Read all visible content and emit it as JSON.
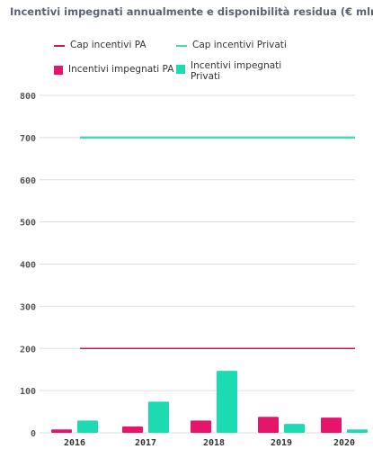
{
  "title": "Incentivi impegnati annualmente e disponibilità residua (€ mln)",
  "colors": {
    "pa": "#e6156b",
    "privati": "#1cdbb2",
    "cap_pa": "#c2185b",
    "cap_privati": "#45d8b6",
    "grid": "#dddddd"
  },
  "legend": {
    "cap_pa": "Cap incentivi PA",
    "cap_privati": "Cap incentivi Privati",
    "inc_pa": "Incentivi impegnati PA",
    "inc_privati_1": "Incentivi impegnati",
    "inc_privati_2": "Privati"
  },
  "chart_data": {
    "type": "bar",
    "title": "Incentivi impegnati annualmente e disponibilità residua (€ mln)",
    "categories": [
      "2016",
      "2017",
      "2018",
      "2019",
      "2020"
    ],
    "series": [
      {
        "name": "Incentivi impegnati PA",
        "values": [
          8,
          15,
          29,
          38,
          36
        ]
      },
      {
        "name": "Incentivi impegnati Privati",
        "values": [
          29,
          74,
          147,
          21,
          8
        ]
      }
    ],
    "lines": [
      {
        "name": "Cap incentivi PA",
        "value": 200
      },
      {
        "name": "Cap incentivi Privati",
        "value": 700
      }
    ],
    "y_ticks": [
      "0",
      "100",
      "200",
      "300",
      "400",
      "500",
      "600",
      "700",
      "800"
    ],
    "ylim": [
      0,
      800
    ],
    "grid": true,
    "legend_position": "top"
  }
}
